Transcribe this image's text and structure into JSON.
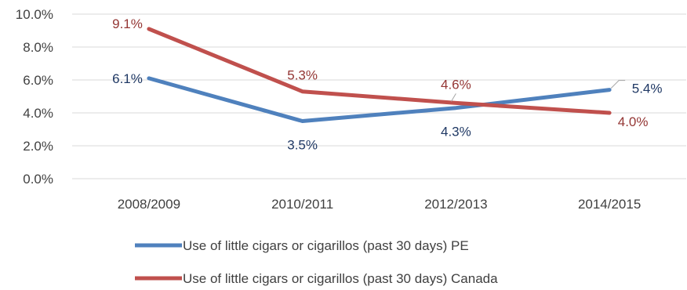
{
  "chart_data": {
    "type": "line",
    "categories": [
      "2008/2009",
      "2010/2011",
      "2012/2013",
      "2014/2015"
    ],
    "y_tick_labels": [
      "0.0%",
      "2.0%",
      "4.0%",
      "6.0%",
      "8.0%",
      "10.0%"
    ],
    "ylim": [
      0,
      10
    ],
    "grid": true,
    "legend_position": "bottom",
    "series": [
      {
        "name": "Use of little cigars or cigarillos (past 30 days) PE",
        "values": [
          6.1,
          3.5,
          4.3,
          5.4
        ],
        "labels": [
          "6.1%",
          "3.5%",
          "4.3%",
          "5.4%"
        ],
        "color": "#4f81bd",
        "label_color": "#1f3864"
      },
      {
        "name": "Use of little cigars or cigarillos (past 30 days) Canada",
        "values": [
          9.1,
          5.3,
          4.6,
          4.0
        ],
        "labels": [
          "9.1%",
          "5.3%",
          "4.6%",
          "4.0%"
        ],
        "color": "#c0504d",
        "label_color": "#943634"
      }
    ]
  }
}
